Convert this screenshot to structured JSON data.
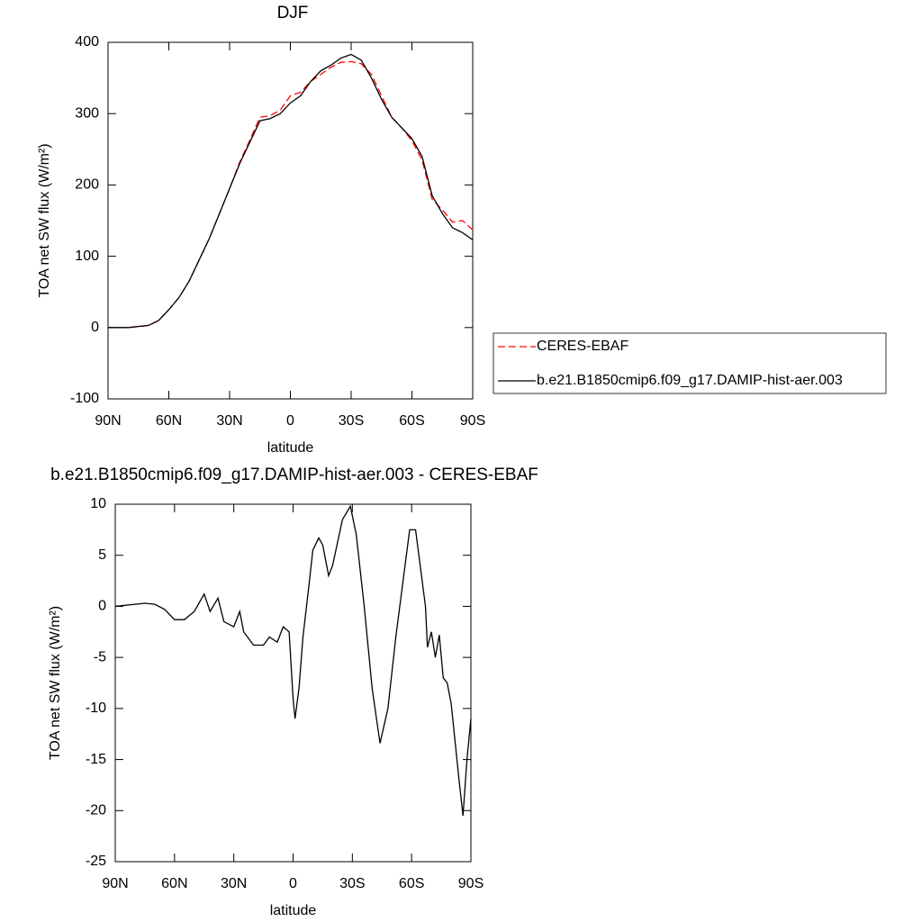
{
  "chart_data": [
    {
      "type": "line",
      "title": "DJF",
      "xlabel": "latitude",
      "ylabel": "TOA net SW flux (W/m²)",
      "x": [
        90,
        80,
        70,
        65,
        60,
        55,
        50,
        45,
        40,
        35,
        30,
        25,
        20,
        15,
        10,
        5,
        0,
        -5,
        -10,
        -15,
        -20,
        -25,
        -30,
        -35,
        -40,
        -45,
        -50,
        -55,
        -60,
        -65,
        -70,
        -75,
        -80,
        -85,
        -90
      ],
      "series": [
        {
          "name": "CERES-EBAF",
          "color": "#ff0000",
          "dash": true,
          "values": [
            0,
            0,
            3,
            10,
            25,
            42,
            65,
            95,
            125,
            160,
            195,
            232,
            263,
            295,
            297,
            305,
            325,
            330,
            345,
            355,
            365,
            372,
            373,
            370,
            355,
            325,
            295,
            280,
            262,
            235,
            180,
            165,
            148,
            150,
            137
          ]
        },
        {
          "name": "b.e21.B1850cmip6.f09_g17.DAMIP-hist-aer.003",
          "color": "#000000",
          "dash": false,
          "values": [
            0,
            0,
            3,
            10,
            25,
            42,
            65,
            95,
            125,
            160,
            195,
            230,
            260,
            290,
            293,
            300,
            315,
            325,
            345,
            360,
            368,
            378,
            383,
            375,
            350,
            320,
            295,
            280,
            265,
            240,
            185,
            160,
            140,
            133,
            123
          ]
        }
      ],
      "xlim": [
        90,
        -90
      ],
      "xticks": [
        {
          "value": 90,
          "label": "90N"
        },
        {
          "value": 60,
          "label": "60N"
        },
        {
          "value": 30,
          "label": "30N"
        },
        0,
        {
          "value": -30,
          "label": "30S"
        },
        {
          "value": -60,
          "label": "60S"
        },
        {
          "value": -90,
          "label": "90S"
        }
      ],
      "ylim": [
        -100,
        400
      ],
      "yticks": [
        -100,
        0,
        100,
        200,
        300,
        400
      ],
      "legend": "right"
    },
    {
      "type": "line",
      "title": "b.e21.B1850cmip6.f09_g17.DAMIP-hist-aer.003 - CERES-EBAF",
      "xlabel": "latitude",
      "ylabel": "TOA net SW flux (W/m²)",
      "x": [
        90,
        80,
        75,
        70,
        65,
        60,
        55,
        50,
        45,
        42,
        38,
        35,
        30,
        27,
        25,
        20,
        15,
        12,
        8,
        5,
        2,
        0,
        -1,
        -3,
        -5,
        -8,
        -10,
        -13,
        -15,
        -18,
        -20,
        -25,
        -29,
        -32,
        -36,
        -40,
        -44,
        -48,
        -52,
        -56,
        -59,
        -62,
        -65,
        -67,
        -68,
        -70,
        -72,
        -74,
        -76,
        -78,
        -80,
        -84,
        -86,
        -88,
        -90
      ],
      "series": [
        {
          "color": "#000000",
          "dash": false,
          "values": [
            0,
            0.2,
            0.3,
            0.2,
            -0.3,
            -1.3,
            -1.3,
            -0.5,
            1.2,
            -0.5,
            0.8,
            -1.5,
            -2.0,
            -0.5,
            -2.5,
            -3.8,
            -3.8,
            -3,
            -3.5,
            -2,
            -2.5,
            -9,
            -11,
            -8,
            -3,
            2,
            5.5,
            6.7,
            6,
            3,
            4,
            8.5,
            9.8,
            7,
            0,
            -8,
            -13.4,
            -10,
            -3,
            3,
            7.5,
            7.5,
            3,
            0,
            -4,
            -2.5,
            -5,
            -2.8,
            -7,
            -7.5,
            -9.5,
            -17,
            -20.5,
            -15,
            -11
          ]
        }
      ],
      "xlim": [
        90,
        -90
      ],
      "xticks": [
        {
          "value": 90,
          "label": "90N"
        },
        {
          "value": 60,
          "label": "60N"
        },
        {
          "value": 30,
          "label": "30N"
        },
        0,
        {
          "value": -30,
          "label": "30S"
        },
        {
          "value": -60,
          "label": "60S"
        },
        {
          "value": -90,
          "label": "90S"
        }
      ],
      "ylim": [
        -25,
        10
      ],
      "yticks": [
        -25,
        -20,
        -15,
        -10,
        -5,
        0,
        5,
        10
      ]
    }
  ]
}
